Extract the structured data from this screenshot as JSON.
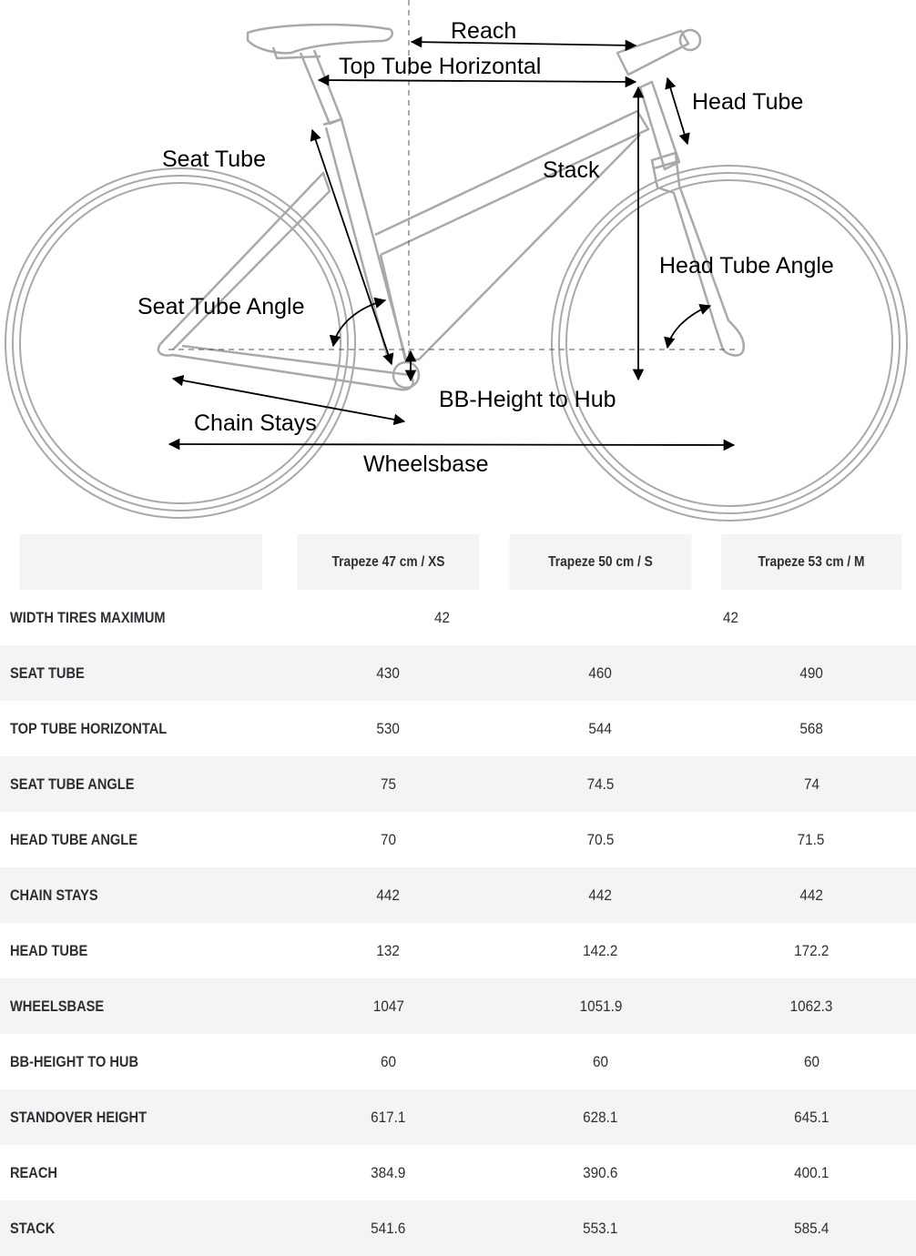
{
  "diagram": {
    "labels": {
      "reach": "Reach",
      "top_tube_horizontal": "Top Tube Horizontal",
      "head_tube": "Head Tube",
      "seat_tube": "Seat Tube",
      "stack": "Stack",
      "head_tube_angle": "Head Tube Angle",
      "seat_tube_angle": "Seat Tube Angle",
      "bb_height_to_hub": "BB-Height to Hub",
      "chain_stays": "Chain Stays",
      "wheelsbase": "Wheelsbase"
    },
    "colors": {
      "frame": "#a9a9a9",
      "arrows": "#000000",
      "table_stripe": "#f4f4f4",
      "table_text": "#2b2f33"
    }
  },
  "table": {
    "columns": [
      "",
      "Trapeze 47 cm / XS",
      "Trapeze 50 cm / S",
      "Trapeze 53 cm / M"
    ],
    "width_tires_row": {
      "label": "WIDTH TIRES MAXIMUM",
      "value_a": "42",
      "value_b": "42"
    },
    "rows": [
      {
        "label": "SEAT TUBE",
        "values": [
          "430",
          "460",
          "490"
        ]
      },
      {
        "label": "TOP TUBE HORIZONTAL",
        "values": [
          "530",
          "544",
          "568"
        ]
      },
      {
        "label": "SEAT TUBE ANGLE",
        "values": [
          "75",
          "74.5",
          "74"
        ]
      },
      {
        "label": "HEAD TUBE ANGLE",
        "values": [
          "70",
          "70.5",
          "71.5"
        ]
      },
      {
        "label": "CHAIN STAYS",
        "values": [
          "442",
          "442",
          "442"
        ]
      },
      {
        "label": "HEAD TUBE",
        "values": [
          "132",
          "142.2",
          "172.2"
        ]
      },
      {
        "label": "WHEELSBASE",
        "values": [
          "1047",
          "1051.9",
          "1062.3"
        ]
      },
      {
        "label": "BB-HEIGHT TO HUB",
        "values": [
          "60",
          "60",
          "60"
        ]
      },
      {
        "label": "STANDOVER HEIGHT",
        "values": [
          "617.1",
          "628.1",
          "645.1"
        ]
      },
      {
        "label": "REACH",
        "values": [
          "384.9",
          "390.6",
          "400.1"
        ]
      },
      {
        "label": "STACK",
        "values": [
          "541.6",
          "553.1",
          "585.4"
        ]
      }
    ]
  }
}
